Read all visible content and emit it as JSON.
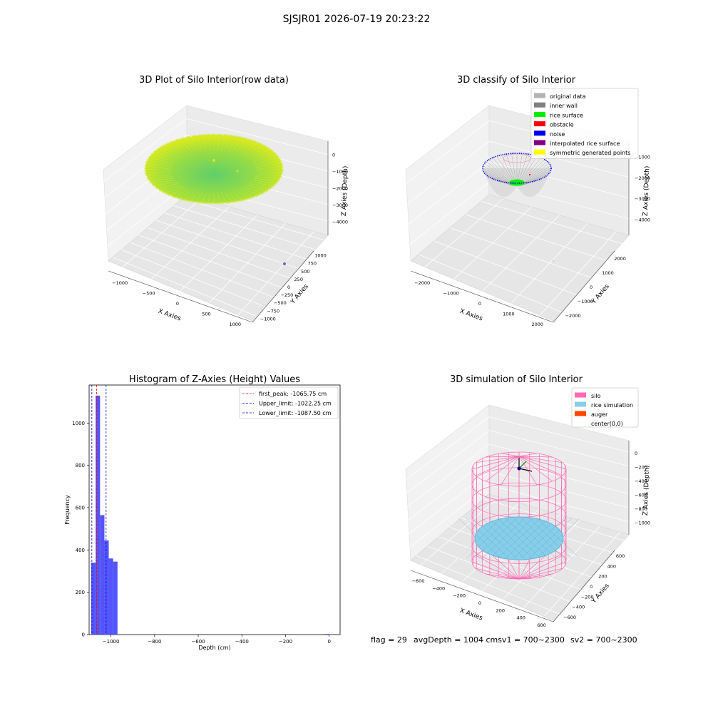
{
  "figure": {
    "suptitle": "SJSJR01 2026-07-19 20:23:22",
    "status": {
      "flag": "flag = 29",
      "avg": "avgDepth = 1004 cmsv1 = 700~2300",
      "sv2": "sv2 = 700~2300"
    }
  },
  "chart_data": [
    {
      "type": "scatter",
      "projection": "3d",
      "title": "3D Plot of Silo Interior(row data)",
      "xlabel": "X Axies",
      "ylabel": "Y Axies",
      "zlabel": "Z Axies (Depth)",
      "xticks": [
        "−1000",
        "−500",
        "0",
        "500",
        "1000"
      ],
      "yticks": [
        "−1000",
        "−750",
        "−500",
        "−250",
        "0",
        "250",
        "500",
        "750",
        "1000"
      ],
      "zticks": [
        "0",
        "−1000",
        "−2000",
        "−3000",
        "−4000"
      ],
      "colormap": [
        "#5fcf6a",
        "#d9ea1e"
      ]
    },
    {
      "type": "scatter",
      "projection": "3d",
      "title": "3D classify of Silo Interior",
      "xlabel": "X Axies",
      "ylabel": "Y Axies",
      "zlabel": "Z Axies (Depth)",
      "xticks": [
        "−2000",
        "−1000",
        "0",
        "1000",
        "2000"
      ],
      "yticks": [
        "−2000",
        "−1000",
        "0",
        "1000",
        "2000"
      ],
      "zticks": [
        "−1000",
        "−2000",
        "−3000",
        "−4000"
      ],
      "legend": [
        {
          "label": "original data",
          "color": "#b3b3b3"
        },
        {
          "label": "inner wall",
          "color": "#808080"
        },
        {
          "label": "rice surface",
          "color": "#00ee00"
        },
        {
          "label": "obstacle",
          "color": "#ff0000"
        },
        {
          "label": "noise",
          "color": "#0000ee"
        },
        {
          "label": "interpolated rice surface",
          "color": "#800080"
        },
        {
          "label": "symmetric generated points",
          "color": "#ffff00"
        }
      ],
      "legend_position": "top-right"
    },
    {
      "type": "bar",
      "subtype": "histogram",
      "title": "Histogram of Z-Axies (Height) Values",
      "xlabel": "Depth (cm)",
      "ylabel": "Frequency",
      "xlim": [
        -1100,
        50
      ],
      "ylim": [
        0,
        1180
      ],
      "xticks": [
        -1000,
        -800,
        -600,
        -400,
        -200,
        0
      ],
      "xtick_labels": [
        "−1000",
        "−800",
        "−600",
        "−400",
        "−200",
        "0"
      ],
      "yticks": [
        0,
        200,
        400,
        600,
        800,
        1000
      ],
      "bin_edges": [
        -1090,
        -1070,
        -1050,
        -1030,
        -1010,
        -990,
        -970,
        -950
      ],
      "values": [
        340,
        1130,
        565,
        445,
        360,
        345,
        0
      ],
      "outlier_bin": {
        "from": -20,
        "to": 0,
        "value": 3
      },
      "bar_color": "#4b4bff",
      "reference_lines": [
        {
          "label": "first_peak: -1065.75 cm",
          "value": -1065.75,
          "color": "#ff0000"
        },
        {
          "label": "Upper_limit: -1022.25 cm",
          "value": -1022.25,
          "color": "#0000cc"
        },
        {
          "label": "Lower_limit: -1087.50 cm",
          "value": -1087.5,
          "color": "#0000cc"
        }
      ],
      "legend_position": "top-right"
    },
    {
      "type": "scatter",
      "projection": "3d",
      "title": "3D simulation of Silo Interior",
      "xlabel": "X Axies",
      "ylabel": "Y Axies",
      "zlabel": "Z Axies (Depth)",
      "xticks": [
        "−600",
        "−400",
        "−200",
        "0",
        "200",
        "400",
        "600"
      ],
      "yticks": [
        "−600",
        "−400",
        "−200",
        "0",
        "200",
        "400",
        "600"
      ],
      "zticks": [
        "0",
        "−200",
        "−400",
        "−600",
        "−800",
        "−1000"
      ],
      "legend": [
        {
          "label": "silo",
          "color": "#ff69b4"
        },
        {
          "label": "rice simulation",
          "color": "#87ceeb"
        },
        {
          "label": "auger",
          "color": "#ff4500"
        },
        {
          "label": "center(0,0)",
          "color": ""
        }
      ],
      "legend_position": "top-right"
    }
  ]
}
